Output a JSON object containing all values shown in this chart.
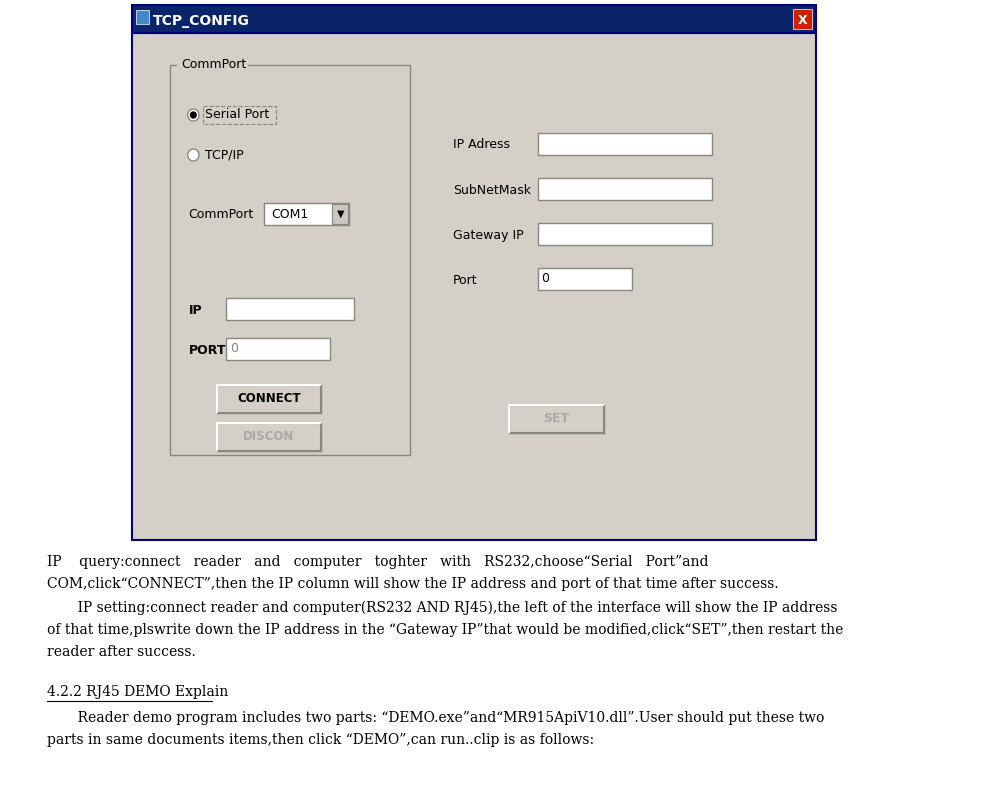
{
  "window_bg": "#d4d0c8",
  "title_bar_color": "#0a246a",
  "title_bar_text": "TCP_CONFIG",
  "close_btn_color": "#cc2200",
  "paragraph1_line1": "IP    query:connect   reader   and   computer   toghter   with   RS232,choose“Serial   Port”and",
  "paragraph1_line2": "COM,click“CONNECT”,then the IP column will show the IP address and port of that time after success.",
  "paragraph2_line1": "       IP setting:connect reader and computer(RS232 AND RJ45),the left of the interface will show the IP address",
  "paragraph2_line2": "of that time,plswrite down the IP address in the “Gateway IP”that would be modified,click“SET”,then restart the",
  "paragraph2_line3": "reader after success.",
  "section_title": "4.2.2 RJ45 DEMO Explain",
  "paragraph3_line1": "       Reader demo program includes two parts: “DEMO.exe”and“MR915ApiV10.dll”.User should put these two",
  "paragraph3_line2": "parts in same documents items,then click “DEMO”,can run..clip is as follows:"
}
